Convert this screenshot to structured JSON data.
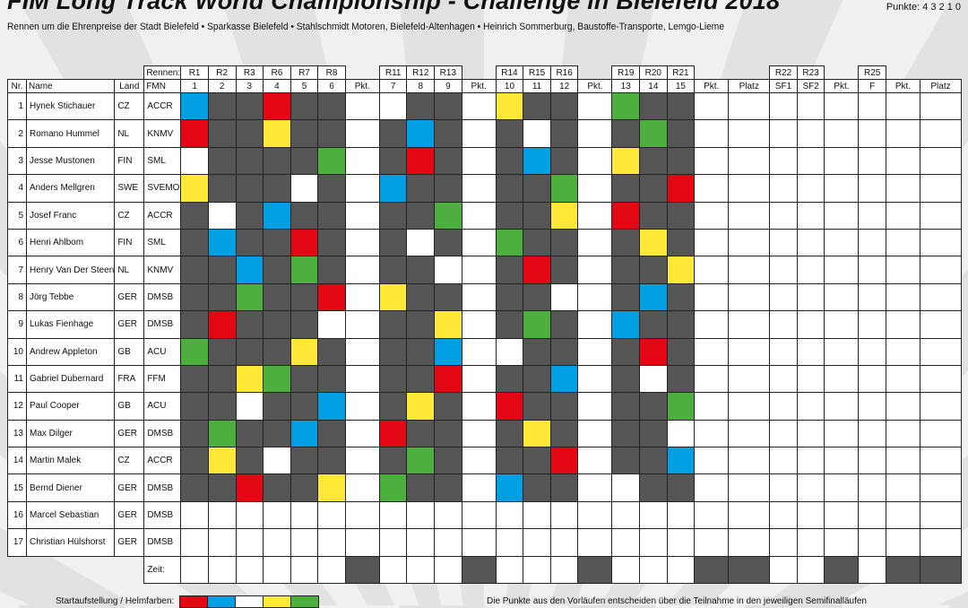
{
  "header": {
    "title": "FIM Long Track World Championship - Challenge in Bielefeld 2018",
    "punkte": "Punkte: 4 3 2 1 0",
    "subtitle": "Rennen um die Ehrenpreise der Stadt Bielefeld • Sparkasse Bielefeld • Stahlschmidt Motoren, Bielefeld-Altenhagen • Heinrich Sommerburg, Baustoffe-Transporte, Lemgo-Lieme"
  },
  "colors": {
    "R": "#e30613",
    "B": "#009fe3",
    "W": "#ffffff",
    "Y": "#ffe936",
    "G": "#4caf3e",
    "D": "#555555"
  },
  "table": {
    "rennen_label": "Rennen:",
    "col_headers": {
      "nr": "Nr.",
      "name": "Name",
      "land": "Land",
      "fmn": "FMN"
    },
    "columns": [
      {
        "race": "R1",
        "num": "1"
      },
      {
        "race": "R2",
        "num": "2"
      },
      {
        "race": "R3",
        "num": "3"
      },
      {
        "race": "R6",
        "num": "4"
      },
      {
        "race": "R7",
        "num": "5"
      },
      {
        "race": "R8",
        "num": "6"
      },
      {
        "race": "",
        "num": "Pkt."
      },
      {
        "race": "R11",
        "num": "7"
      },
      {
        "race": "R12",
        "num": "8"
      },
      {
        "race": "R13",
        "num": "9"
      },
      {
        "race": "",
        "num": "Pkt."
      },
      {
        "race": "R14",
        "num": "10"
      },
      {
        "race": "R15",
        "num": "11"
      },
      {
        "race": "R16",
        "num": "12"
      },
      {
        "race": "",
        "num": "Pkt."
      },
      {
        "race": "R19",
        "num": "13"
      },
      {
        "race": "R20",
        "num": "14"
      },
      {
        "race": "R21",
        "num": "15"
      },
      {
        "race": "",
        "num": "Pkt."
      },
      {
        "race": "",
        "num": "Platz"
      },
      {
        "race": "R22",
        "num": "SF1"
      },
      {
        "race": "R23",
        "num": "SF2"
      },
      {
        "race": "",
        "num": "Pkt."
      },
      {
        "race": "R25",
        "num": "F"
      },
      {
        "race": "",
        "num": "Pkt."
      },
      {
        "race": "",
        "num": "Platz"
      }
    ],
    "riders": [
      {
        "nr": "1",
        "name": "Hynek Stichauer",
        "land": "CZ",
        "fmn": "ACCR",
        "helmets": "BDDRDD-WDD-YDD-GDD"
      },
      {
        "nr": "2",
        "name": "Romano Hummel",
        "land": "NL",
        "fmn": "KNMV",
        "helmets": "RDDYDD-DBD-DWD-DGD"
      },
      {
        "nr": "3",
        "name": "Jesse Mustonen",
        "land": "FIN",
        "fmn": "SML",
        "helmets": "WDDDDG-DRD-DBD-YDD"
      },
      {
        "nr": "4",
        "name": "Anders Mellgren",
        "land": "SWE",
        "fmn": "SVEMO",
        "helmets": "YDDDWD-BDD-DDG-DDR"
      },
      {
        "nr": "5",
        "name": "Josef Franc",
        "land": "CZ",
        "fmn": "ACCR",
        "helmets": "DWDBDD-DDG-DDY-RDD"
      },
      {
        "nr": "6",
        "name": "Henri Ahlbom",
        "land": "FIN",
        "fmn": "SML",
        "helmets": "DBDDRD-DWD-GDD-DYD"
      },
      {
        "nr": "7",
        "name": "Henry Van Der Steen",
        "land": "NL",
        "fmn": "KNMV",
        "helmets": "DDBDGD-DDW-DRD-DDY"
      },
      {
        "nr": "8",
        "name": "Jörg Tebbe",
        "land": "GER",
        "fmn": "DMSB",
        "helmets": "DDGDDR-YDD-DDW-DBD"
      },
      {
        "nr": "9",
        "name": "Lukas Fienhage",
        "land": "GER",
        "fmn": "DMSB",
        "helmets": "DRDDDW-DDY-DGD-BDD"
      },
      {
        "nr": "10",
        "name": "Andrew Appleton",
        "land": "GB",
        "fmn": "ACU",
        "helmets": "GDDDYD-DDB-WDD-DRD"
      },
      {
        "nr": "11",
        "name": "Gabriel Dubernard",
        "land": "FRA",
        "fmn": "FFM",
        "helmets": "DDYGDD-DDR-DDB-DWD"
      },
      {
        "nr": "12",
        "name": "Paul Cooper",
        "land": "GB",
        "fmn": "ACU",
        "helmets": "DDWDDB-DYD-RDD-DDG"
      },
      {
        "nr": "13",
        "name": "Max Dilger",
        "land": "GER",
        "fmn": "DMSB",
        "helmets": "DGDDBD-RDD-DYD-DDW"
      },
      {
        "nr": "14",
        "name": "Martin Malek",
        "land": "CZ",
        "fmn": "ACCR",
        "helmets": "DYDWDD-DGD-DDR-DDB"
      },
      {
        "nr": "15",
        "name": "Bernd Diener",
        "land": "GER",
        "fmn": "DMSB",
        "helmets": "DDRDDY-GDD-BDD-WDD"
      },
      {
        "nr": "16",
        "name": "Marcel Sebastian",
        "land": "GER",
        "fmn": "DMSB",
        "helmets": "WWWWWW-WWW-WWW-WWW"
      },
      {
        "nr": "17",
        "name": "Christian Hülshorst",
        "land": "GER",
        "fmn": "DMSB",
        "helmets": "WWWWWW-WWW-WWW-WWW"
      }
    ],
    "zeit_label": "Zeit:"
  },
  "legend": {
    "label": "Startaufstellung / Helmfarben:",
    "swatches": [
      "R",
      "B",
      "W",
      "Y",
      "G"
    ],
    "note": "Die Punkte aus den Vorläufen entscheiden über die Teilnahme in den jeweiligen Semifinalläufen"
  }
}
